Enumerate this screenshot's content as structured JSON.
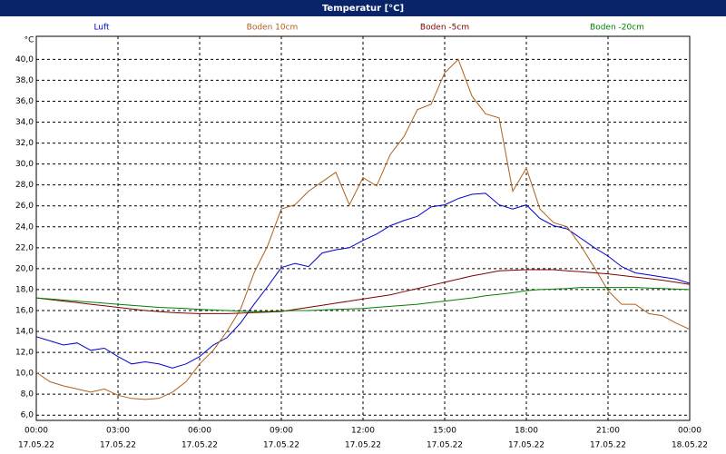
{
  "chart_data": {
    "type": "line",
    "title": "Temperatur [°C]",
    "y_unit": "°C",
    "x": [
      0,
      0.5,
      1,
      1.5,
      2,
      2.5,
      3,
      3.5,
      4,
      4.5,
      5,
      5.5,
      6,
      6.5,
      7,
      7.5,
      8,
      8.5,
      9,
      9.5,
      10,
      10.5,
      11,
      11.5,
      12,
      12.5,
      13,
      13.5,
      14,
      14.5,
      15,
      15.5,
      16,
      16.5,
      17,
      17.5,
      18,
      18.5,
      19,
      19.5,
      20,
      20.5,
      21,
      21.5,
      22,
      22.5,
      23,
      23.5,
      24
    ],
    "series": [
      {
        "name": "Luft",
        "color": "#0000cc",
        "values": [
          13.5,
          13.1,
          12.7,
          12.9,
          12.2,
          12.4,
          11.6,
          10.9,
          11.1,
          10.9,
          10.5,
          10.9,
          11.6,
          12.7,
          13.4,
          14.8,
          16.6,
          18.3,
          20.1,
          20.5,
          20.2,
          21.5,
          21.8,
          22.0,
          22.7,
          23.3,
          24.1,
          24.6,
          25.0,
          25.9,
          26.1,
          26.7,
          27.1,
          27.2,
          26.1,
          25.7,
          26.1,
          24.8,
          24.1,
          23.8,
          22.9,
          22.0,
          21.2,
          20.2,
          19.6,
          19.4,
          19.2,
          19.0,
          18.6
        ]
      },
      {
        "name": "Boden 10cm",
        "color": "#b0601a",
        "values": [
          10.1,
          9.2,
          8.8,
          8.5,
          8.2,
          8.5,
          7.9,
          7.6,
          7.5,
          7.6,
          8.2,
          9.2,
          10.9,
          12.2,
          14.0,
          16.1,
          19.6,
          22.2,
          25.7,
          26.1,
          27.4,
          28.3,
          29.2,
          26.1,
          28.7,
          27.9,
          30.9,
          32.6,
          35.2,
          35.7,
          38.7,
          40.0,
          36.5,
          34.8,
          34.4,
          27.4,
          29.6,
          25.7,
          24.4,
          24.0,
          22.2,
          20.1,
          17.9,
          16.6,
          16.6,
          15.7,
          15.5,
          14.8,
          14.2
        ]
      },
      {
        "name": "Boden -5cm",
        "color": "#800000",
        "values": [
          17.2,
          17.05,
          16.9,
          16.75,
          16.6,
          16.45,
          16.3,
          16.15,
          16.0,
          15.9,
          15.8,
          15.75,
          15.7,
          15.7,
          15.7,
          15.75,
          15.8,
          15.85,
          15.9,
          16.1,
          16.3,
          16.5,
          16.7,
          16.9,
          17.1,
          17.3,
          17.5,
          17.8,
          18.1,
          18.4,
          18.7,
          19.0,
          19.3,
          19.55,
          19.8,
          19.85,
          19.9,
          19.9,
          19.9,
          19.8,
          19.7,
          19.6,
          19.5,
          19.35,
          19.2,
          19.05,
          18.9,
          18.7,
          18.5
        ]
      },
      {
        "name": "Boden -20cm",
        "color": "#008000",
        "values": [
          17.2,
          17.1,
          17.0,
          16.9,
          16.8,
          16.7,
          16.6,
          16.5,
          16.4,
          16.3,
          16.25,
          16.2,
          16.1,
          16.05,
          16.0,
          15.95,
          15.9,
          15.9,
          15.95,
          16.0,
          16.0,
          16.05,
          16.1,
          16.15,
          16.2,
          16.3,
          16.4,
          16.5,
          16.6,
          16.75,
          16.9,
          17.05,
          17.2,
          17.4,
          17.55,
          17.7,
          17.9,
          18.0,
          18.05,
          18.1,
          18.2,
          18.2,
          18.2,
          18.2,
          18.2,
          18.15,
          18.1,
          18.05,
          18.0
        ]
      }
    ],
    "xlim": [
      0,
      24
    ],
    "xticks": [
      {
        "value": 0,
        "label": "00:00"
      },
      {
        "value": 3,
        "label": "03:00"
      },
      {
        "value": 6,
        "label": "06:00"
      },
      {
        "value": 9,
        "label": "09:00"
      },
      {
        "value": 12,
        "label": "12:00"
      },
      {
        "value": 15,
        "label": "15:00"
      },
      {
        "value": 18,
        "label": "18:00"
      },
      {
        "value": 21,
        "label": "21:00"
      },
      {
        "value": 24,
        "label": "00:00"
      }
    ],
    "xtick_dates": [
      "17.05.22",
      "17.05.22",
      "17.05.22",
      "17.05.22",
      "17.05.22",
      "17.05.22",
      "17.05.22",
      "17.05.22",
      "18.05.22"
    ],
    "ylim": [
      5.5,
      42.2
    ],
    "yticks": [
      {
        "value": 6,
        "label": "6,0"
      },
      {
        "value": 8,
        "label": "8,0"
      },
      {
        "value": 10,
        "label": "10,0"
      },
      {
        "value": 12,
        "label": "12,0"
      },
      {
        "value": 14,
        "label": "14,0"
      },
      {
        "value": 16,
        "label": "16,0"
      },
      {
        "value": 18,
        "label": "18,0"
      },
      {
        "value": 20,
        "label": "20,0"
      },
      {
        "value": 22,
        "label": "22,0"
      },
      {
        "value": 24,
        "label": "24,0"
      },
      {
        "value": 26,
        "label": "26,0"
      },
      {
        "value": 28,
        "label": "28,0"
      },
      {
        "value": 30,
        "label": "30,0"
      },
      {
        "value": 32,
        "label": "32,0"
      },
      {
        "value": 34,
        "label": "34,0"
      },
      {
        "value": 36,
        "label": "36,0"
      },
      {
        "value": 38,
        "label": "38,0"
      },
      {
        "value": 40,
        "label": "40,0"
      }
    ],
    "grid": true
  }
}
